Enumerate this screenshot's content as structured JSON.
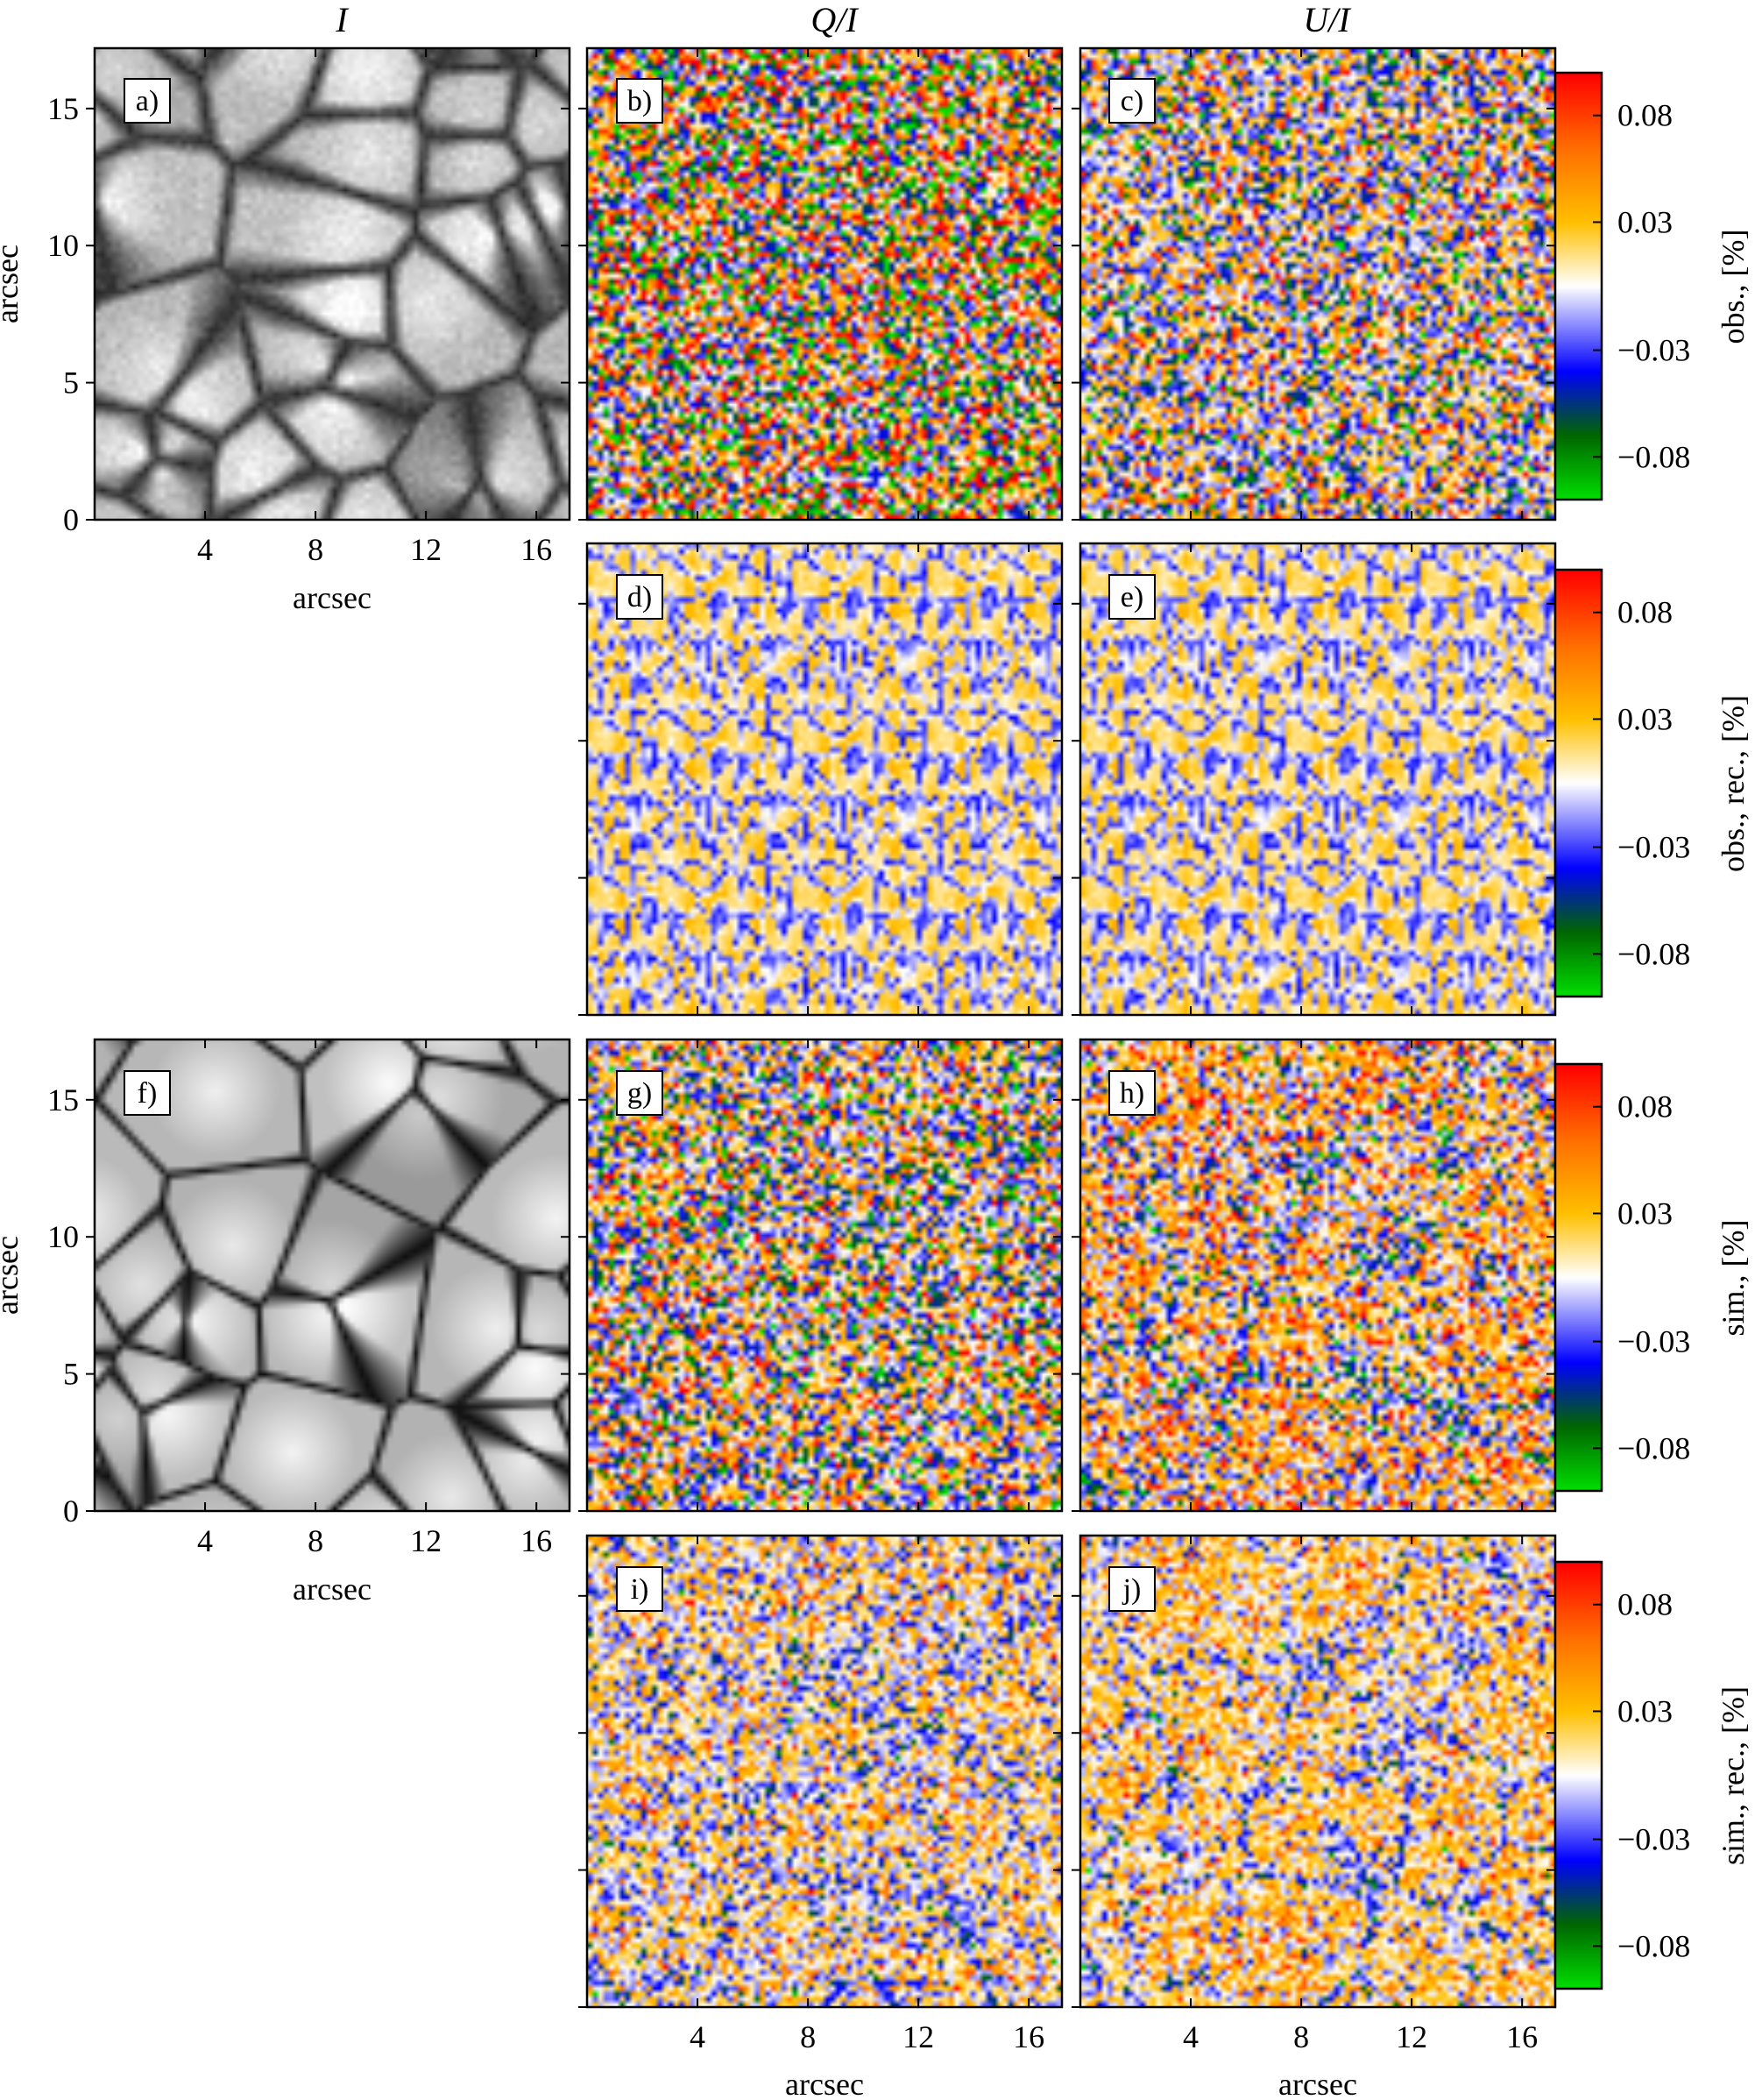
{
  "columns": [
    "I",
    "Q/I",
    "U/I"
  ],
  "axis_label": "arcsec",
  "x_ticks": [
    "4",
    "8",
    "12",
    "16"
  ],
  "y_ticks": [
    "0",
    "5",
    "10",
    "15"
  ],
  "x_tick_values": [
    4,
    8,
    12,
    16
  ],
  "y_tick_values": [
    0,
    5,
    10,
    15
  ],
  "axis_range": [
    0,
    17.2
  ],
  "colorbar_ticks": [
    "0.08",
    "0.03",
    "−0.03",
    "−0.08"
  ],
  "colorbar_tick_values": [
    0.08,
    0.03,
    -0.03,
    -0.08
  ],
  "colorbar_range": [
    -0.1,
    0.1
  ],
  "colorbar_stops": [
    "#00dd00",
    "#006600",
    "#0000ff",
    "#ffffff",
    "#ffc000",
    "#ff7000",
    "#ff0000"
  ],
  "colorbars": [
    {
      "label": "obs., [%]"
    },
    {
      "label": "obs., rec., [%]"
    },
    {
      "label": "sim., [%]"
    },
    {
      "label": "sim., rec., [%]"
    }
  ],
  "panels": [
    {
      "id": "a",
      "label": "a)",
      "kind": "intensity",
      "style": "obs"
    },
    {
      "id": "b",
      "label": "b)",
      "kind": "polar",
      "style": "noisyQ"
    },
    {
      "id": "c",
      "label": "c)",
      "kind": "polar",
      "style": "noisyU"
    },
    {
      "id": "d",
      "label": "d)",
      "kind": "polar",
      "style": "smooth"
    },
    {
      "id": "e",
      "label": "e)",
      "kind": "polar",
      "style": "smooth"
    },
    {
      "id": "f",
      "label": "f)",
      "kind": "intensity",
      "style": "sim"
    },
    {
      "id": "g",
      "label": "g)",
      "kind": "polar",
      "style": "simQ"
    },
    {
      "id": "h",
      "label": "h)",
      "kind": "polar",
      "style": "simU"
    },
    {
      "id": "i",
      "label": "i)",
      "kind": "polar",
      "style": "simRecQ"
    },
    {
      "id": "j",
      "label": "j)",
      "kind": "polar",
      "style": "simRecU"
    }
  ]
}
